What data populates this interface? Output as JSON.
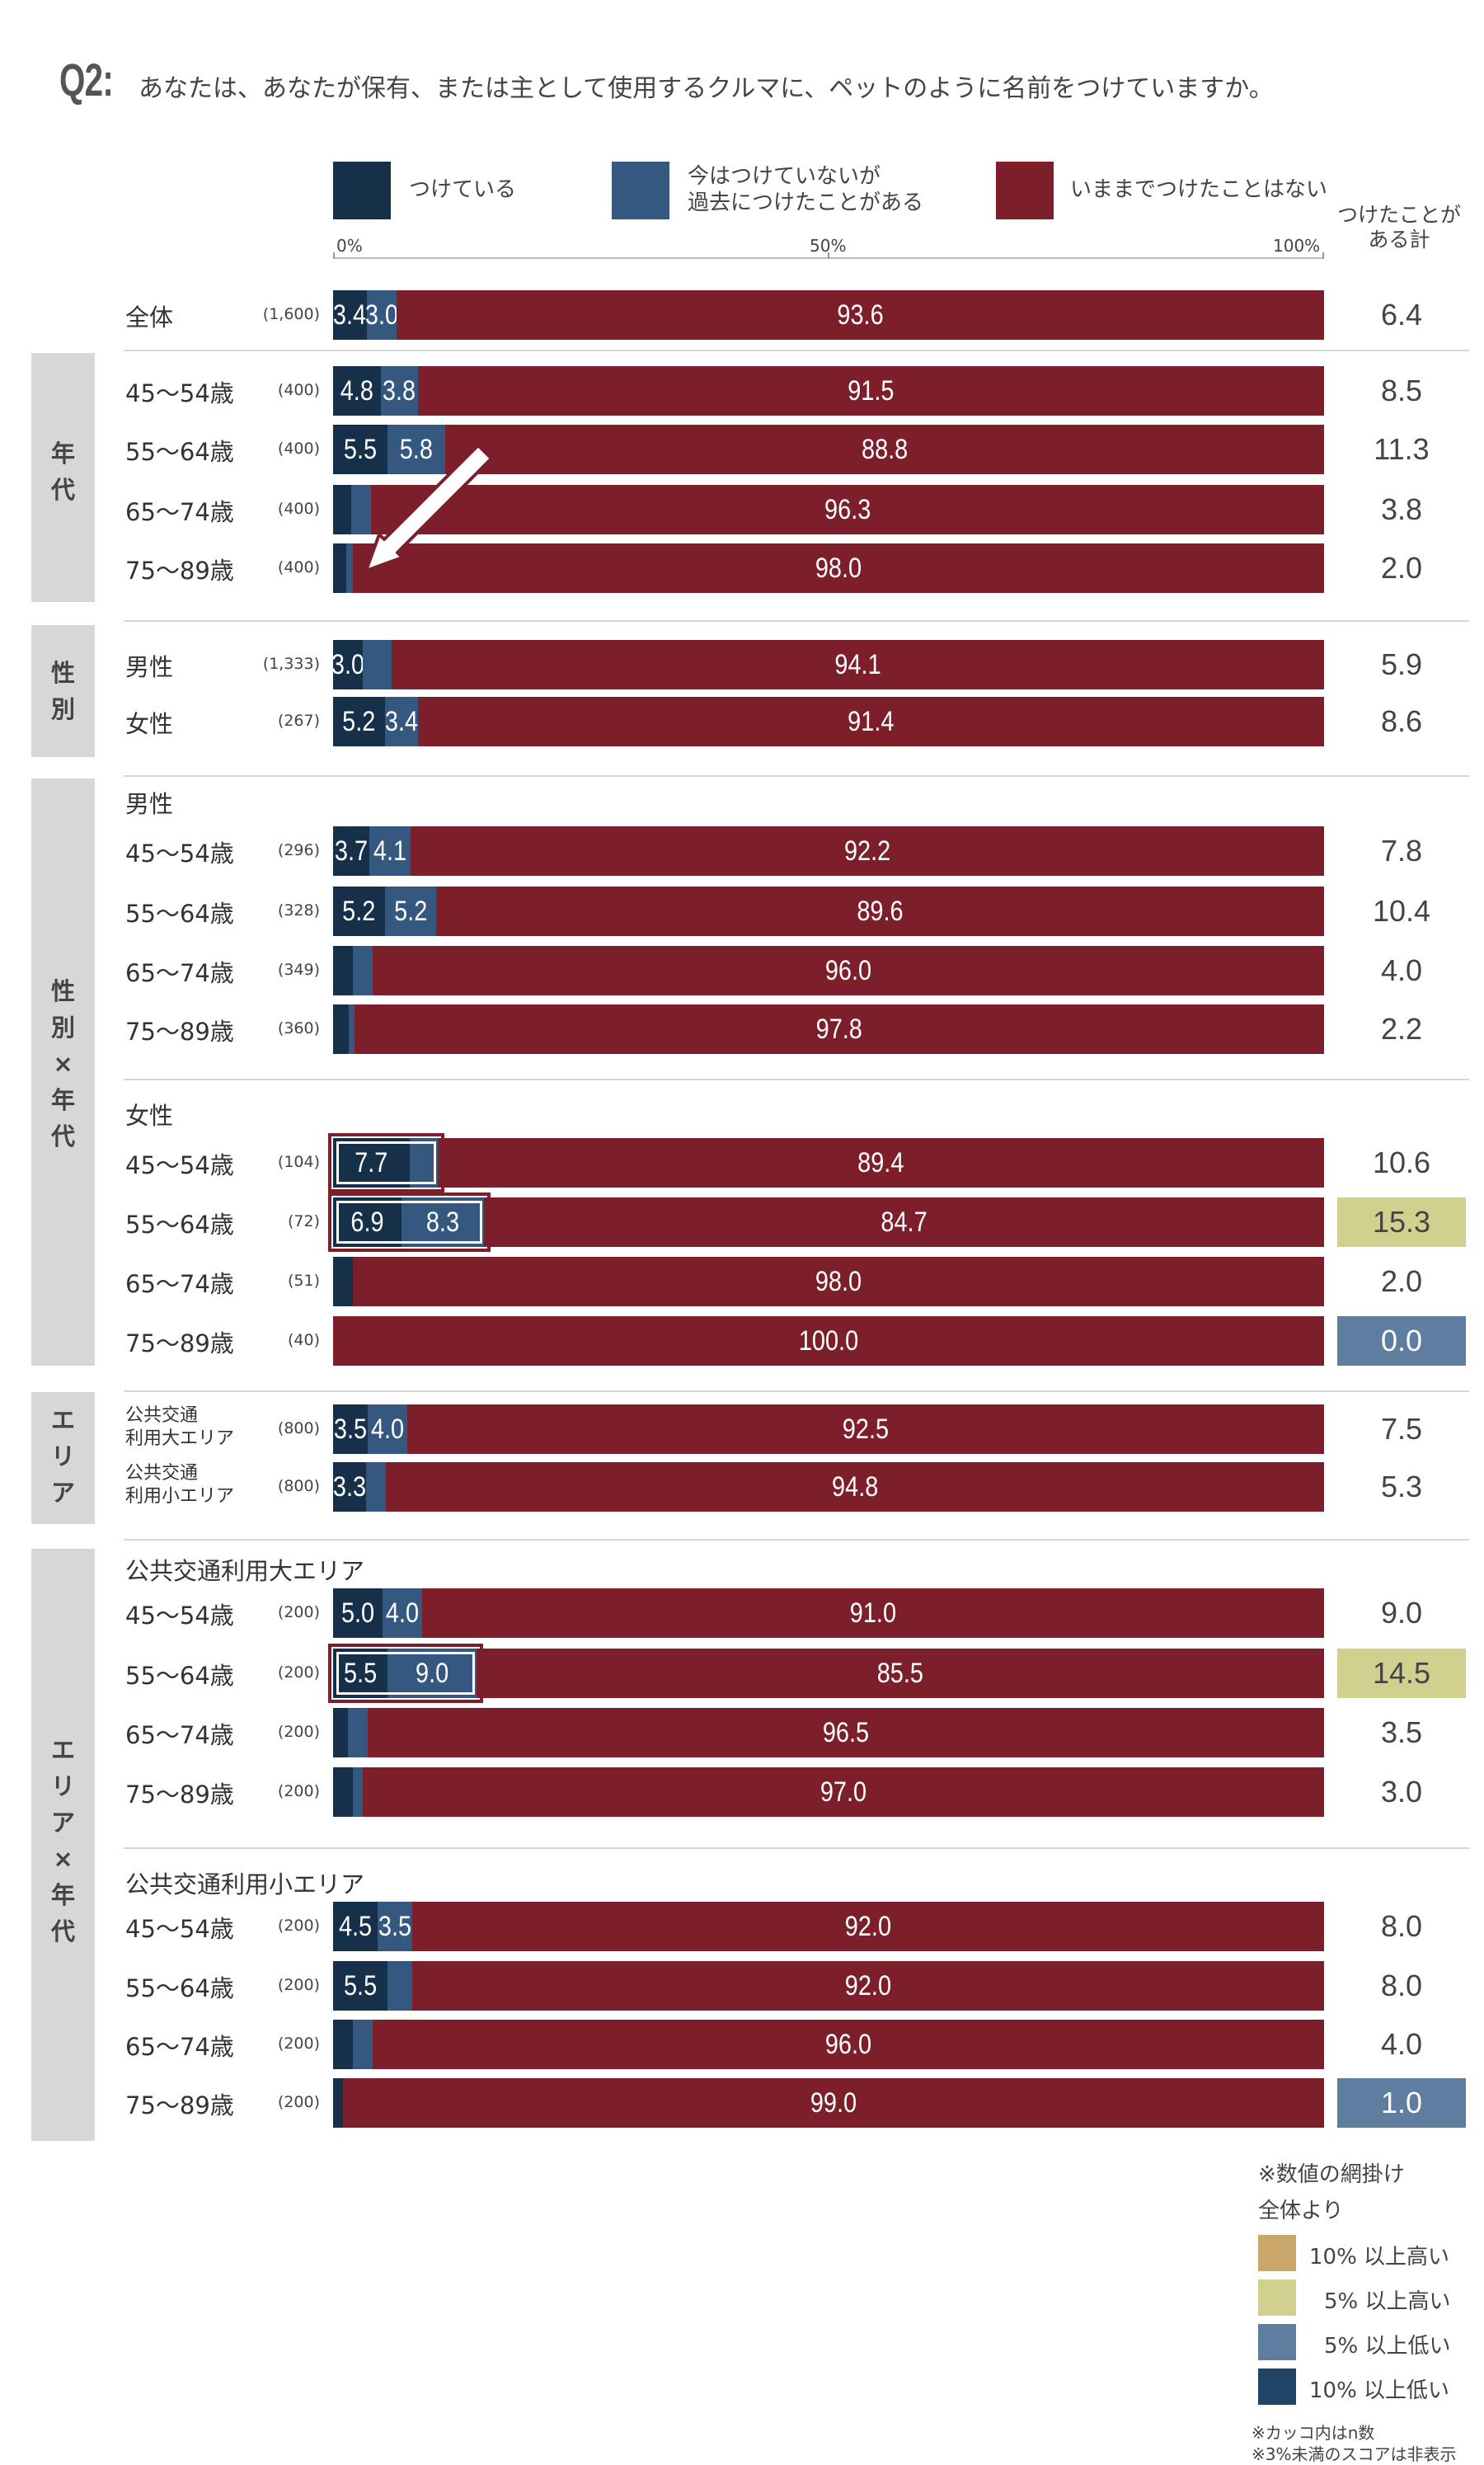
{
  "question": {
    "number": "Q2:",
    "text": "あなたは、あなたが保有、または主として使用するクルマに、ペットのように名前をつけていますか。"
  },
  "legend": [
    {
      "label": "つけている",
      "color": "#17304a"
    },
    {
      "label": "今はつけていないが\n過去につけたことがある",
      "color": "#34587f"
    },
    {
      "label": "いままでつけたことはない",
      "color": "#7d1f2a"
    }
  ],
  "axis": {
    "ticks": [
      "0%",
      "50%",
      "100%"
    ]
  },
  "sum_header": "つけたことが\nある計",
  "bands": [
    {
      "key": "age",
      "text": "年\n代"
    },
    {
      "key": "gender",
      "text": "性\n別"
    },
    {
      "key": "gxage",
      "text": "性\n別\n×\n年\n代"
    },
    {
      "key": "area",
      "text": "エ\nリ\nア"
    },
    {
      "key": "axage",
      "text": "エ\nリ\nア\n×\n年\n代"
    }
  ],
  "subheads": {
    "male": "男性",
    "female": "女性",
    "large_area": "公共交通利用大エリア",
    "small_area": "公共交通利用小エリア"
  },
  "notes": {
    "title": "※数値の網掛け",
    "subtitle": "全体より",
    "items": [
      {
        "label": "10% 以上高い",
        "color": "#c9a66a"
      },
      {
        "label": "5% 以上高い",
        "color": "#d2d08e"
      },
      {
        "label": "5% 以上低い",
        "color": "#5f7d9e"
      },
      {
        "label": "10% 以上低い",
        "color": "#1f4466"
      }
    ],
    "footnote1": "※カッコ内はn数",
    "footnote2": "※3%未満のスコアは非表示"
  },
  "colors": {
    "named": "#17304a",
    "past": "#34587f",
    "never": "#7d1f2a",
    "high5": "#d2d08e",
    "low5": "#5f7d9e"
  },
  "chart_data": {
    "type": "bar",
    "stacked": true,
    "orientation": "horizontal",
    "xlim": [
      0,
      100
    ],
    "series_names": [
      "つけている",
      "今はつけていないが過去につけたことがある",
      "いままでつけたことはない"
    ],
    "rows": [
      {
        "label": "全体",
        "n": "(1,600)",
        "values": [
          3.4,
          3.0,
          93.6
        ],
        "labels": [
          "3.4",
          "3.0",
          "93.6"
        ],
        "total": "6.4",
        "total_shade": "",
        "highlight": false
      },
      {
        "label": "45～54歳",
        "n": "(400)",
        "values": [
          4.8,
          3.8,
          91.5
        ],
        "labels": [
          "4.8",
          "3.8",
          "91.5"
        ],
        "total": "8.5",
        "total_shade": "",
        "highlight": false
      },
      {
        "label": "55～64歳",
        "n": "(400)",
        "values": [
          5.5,
          5.8,
          88.8
        ],
        "labels": [
          "5.5",
          "5.8",
          "88.8"
        ],
        "total": "11.3",
        "total_shade": "",
        "highlight": false
      },
      {
        "label": "65～74歳",
        "n": "(400)",
        "values": [
          1.8,
          2.0,
          96.3
        ],
        "labels": [
          "",
          "",
          "96.3"
        ],
        "total": "3.8",
        "total_shade": "",
        "highlight": false
      },
      {
        "label": "75～89歳",
        "n": "(400)",
        "values": [
          1.3,
          0.7,
          98.0
        ],
        "labels": [
          "",
          "",
          "98.0"
        ],
        "total": "2.0",
        "total_shade": "",
        "highlight": false
      },
      {
        "label": "男性",
        "n": "(1,333)",
        "values": [
          3.0,
          2.9,
          94.1
        ],
        "labels": [
          "3.0",
          "",
          "94.1"
        ],
        "total": "5.9",
        "total_shade": "",
        "highlight": false
      },
      {
        "label": "女性",
        "n": "(267)",
        "values": [
          5.2,
          3.4,
          91.4
        ],
        "labels": [
          "5.2",
          "3.4",
          "91.4"
        ],
        "total": "8.6",
        "total_shade": "",
        "highlight": false
      },
      {
        "label": "45～54歳",
        "n": "(296)",
        "values": [
          3.7,
          4.1,
          92.2
        ],
        "labels": [
          "3.7",
          "4.1",
          "92.2"
        ],
        "total": "7.8",
        "total_shade": "",
        "highlight": false
      },
      {
        "label": "55～64歳",
        "n": "(328)",
        "values": [
          5.2,
          5.2,
          89.6
        ],
        "labels": [
          "5.2",
          "5.2",
          "89.6"
        ],
        "total": "10.4",
        "total_shade": "",
        "highlight": false
      },
      {
        "label": "65～74歳",
        "n": "(349)",
        "values": [
          2.0,
          2.0,
          96.0
        ],
        "labels": [
          "",
          "",
          "96.0"
        ],
        "total": "4.0",
        "total_shade": "",
        "highlight": false
      },
      {
        "label": "75～89歳",
        "n": "(360)",
        "values": [
          1.6,
          0.6,
          97.8
        ],
        "labels": [
          "",
          "",
          "97.8"
        ],
        "total": "2.2",
        "total_shade": "",
        "highlight": false
      },
      {
        "label": "45～54歳",
        "n": "(104)",
        "values": [
          7.7,
          2.9,
          89.4
        ],
        "labels": [
          "7.7",
          "",
          "89.4"
        ],
        "total": "10.6",
        "total_shade": "",
        "highlight": true
      },
      {
        "label": "55～64歳",
        "n": "(72)",
        "values": [
          6.9,
          8.3,
          84.7
        ],
        "labels": [
          "6.9",
          "8.3",
          "84.7"
        ],
        "total": "15.3",
        "total_shade": "high5",
        "highlight": true
      },
      {
        "label": "65～74歳",
        "n": "(51)",
        "values": [
          2.0,
          0.0,
          98.0
        ],
        "labels": [
          "",
          "",
          "98.0"
        ],
        "total": "2.0",
        "total_shade": "",
        "highlight": false
      },
      {
        "label": "75～89歳",
        "n": "(40)",
        "values": [
          0.0,
          0.0,
          100.0
        ],
        "labels": [
          "",
          "",
          "100.0"
        ],
        "total": "0.0",
        "total_shade": "low5",
        "highlight": false
      },
      {
        "label": "公共交通\n利用大エリア",
        "n": "(800)",
        "values": [
          3.5,
          4.0,
          92.5
        ],
        "labels": [
          "3.5",
          "4.0",
          "92.5"
        ],
        "total": "7.5",
        "total_shade": "",
        "highlight": false
      },
      {
        "label": "公共交通\n利用小エリア",
        "n": "(800)",
        "values": [
          3.3,
          2.0,
          94.8
        ],
        "labels": [
          "3.3",
          "",
          "94.8"
        ],
        "total": "5.3",
        "total_shade": "",
        "highlight": false
      },
      {
        "label": "45～54歳",
        "n": "(200)",
        "values": [
          5.0,
          4.0,
          91.0
        ],
        "labels": [
          "5.0",
          "4.0",
          "91.0"
        ],
        "total": "9.0",
        "total_shade": "",
        "highlight": false
      },
      {
        "label": "55～64歳",
        "n": "(200)",
        "values": [
          5.5,
          9.0,
          85.5
        ],
        "labels": [
          "5.5",
          "9.0",
          "85.5"
        ],
        "total": "14.5",
        "total_shade": "high5",
        "highlight": true
      },
      {
        "label": "65～74歳",
        "n": "(200)",
        "values": [
          1.5,
          2.0,
          96.5
        ],
        "labels": [
          "",
          "",
          "96.5"
        ],
        "total": "3.5",
        "total_shade": "",
        "highlight": false
      },
      {
        "label": "75～89歳",
        "n": "(200)",
        "values": [
          2.0,
          1.0,
          97.0
        ],
        "labels": [
          "",
          "",
          "97.0"
        ],
        "total": "3.0",
        "total_shade": "",
        "highlight": false
      },
      {
        "label": "45～54歳",
        "n": "(200)",
        "values": [
          4.5,
          3.5,
          92.0
        ],
        "labels": [
          "4.5",
          "3.5",
          "92.0"
        ],
        "total": "8.0",
        "total_shade": "",
        "highlight": false
      },
      {
        "label": "55～64歳",
        "n": "(200)",
        "values": [
          5.5,
          2.5,
          92.0
        ],
        "labels": [
          "5.5",
          "",
          "92.0"
        ],
        "total": "8.0",
        "total_shade": "",
        "highlight": false
      },
      {
        "label": "65～74歳",
        "n": "(200)",
        "values": [
          2.0,
          2.0,
          96.0
        ],
        "labels": [
          "",
          "",
          "96.0"
        ],
        "total": "4.0",
        "total_shade": "",
        "highlight": false
      },
      {
        "label": "75～89歳",
        "n": "(200)",
        "values": [
          1.0,
          0.0,
          99.0
        ],
        "labels": [
          "",
          "",
          "99.0"
        ],
        "total": "1.0",
        "total_shade": "low5",
        "highlight": false
      }
    ]
  }
}
